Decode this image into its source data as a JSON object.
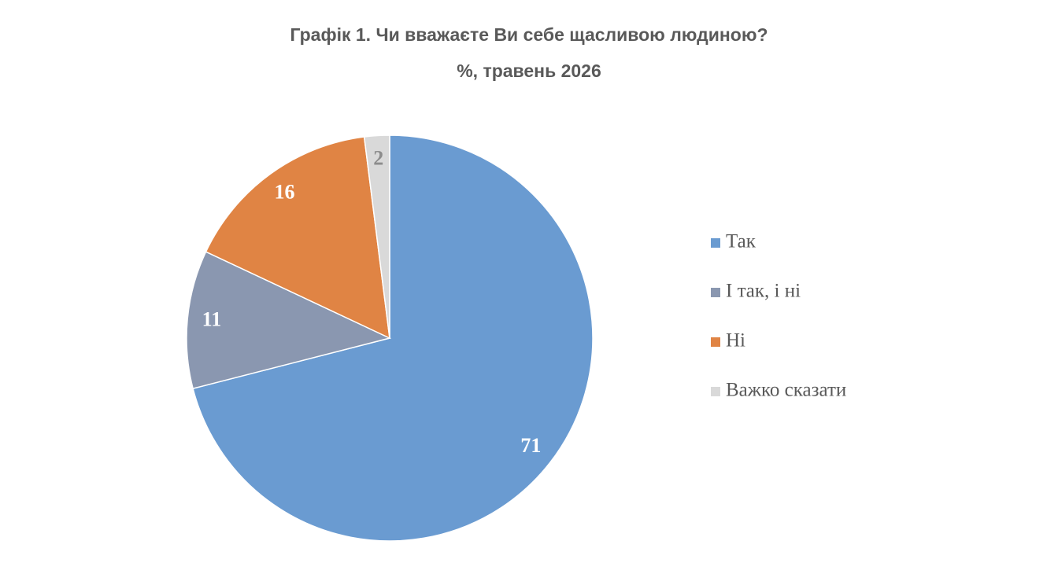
{
  "chart_data": {
    "type": "pie",
    "title": "Графік 1. Чи вважаєте Ви себе щасливою людиною?",
    "subtitle": "%, травень 2026",
    "categories": [
      "Так",
      "І так, і ні",
      "Ні",
      "Важко сказати"
    ],
    "values": [
      71,
      11,
      16,
      2
    ],
    "colors": [
      "#6a9bd1",
      "#8a97b0",
      "#e08444",
      "#d9d9d9"
    ],
    "legend": "right"
  }
}
